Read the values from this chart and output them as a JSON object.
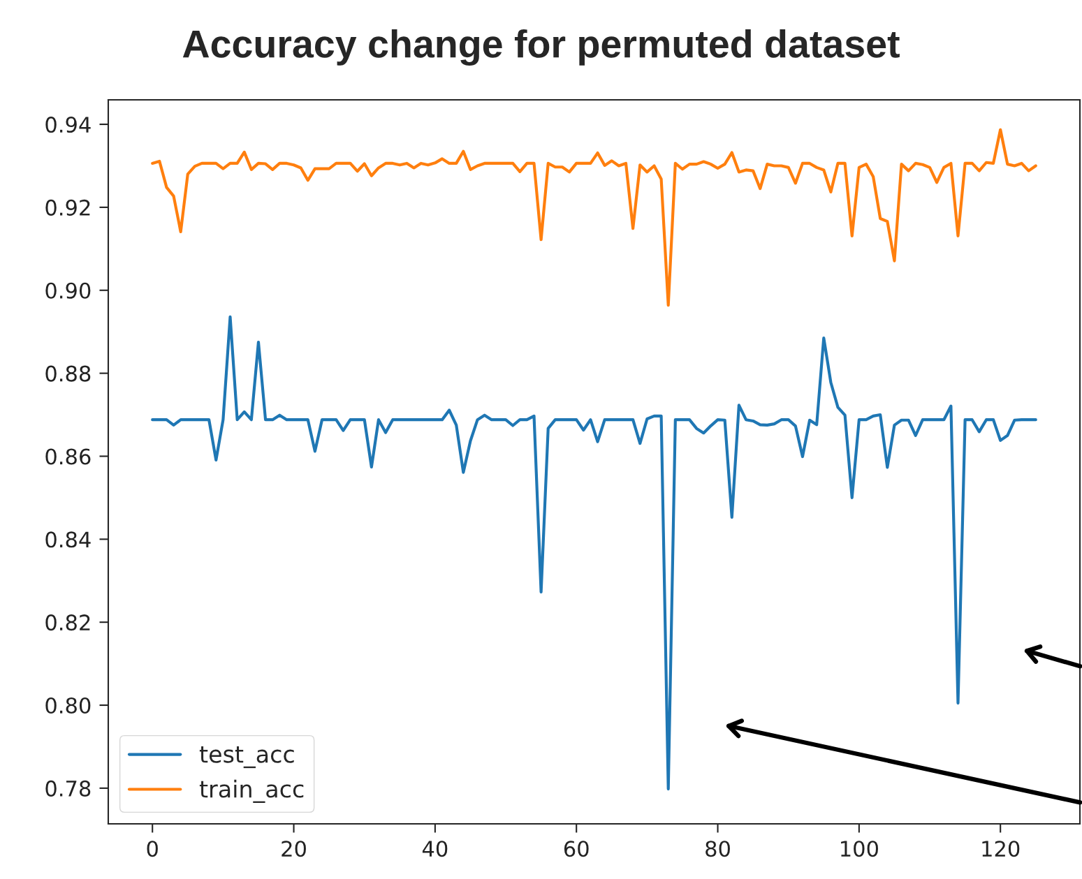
{
  "chart_data": {
    "type": "line",
    "title": "Accuracy change for permuted dataset",
    "x": [
      0,
      1,
      2,
      3,
      4,
      5,
      6,
      7,
      8,
      9,
      10,
      11,
      12,
      13,
      14,
      15,
      16,
      17,
      18,
      19,
      20,
      21,
      22,
      23,
      24,
      25,
      26,
      27,
      28,
      29,
      30,
      31,
      32,
      33,
      34,
      35,
      36,
      37,
      38,
      39,
      40,
      41,
      42,
      43,
      44,
      45,
      46,
      47,
      48,
      49,
      50,
      51,
      52,
      53,
      54,
      55,
      56,
      57,
      58,
      59,
      60,
      61,
      62,
      63,
      64,
      65,
      66,
      67,
      68,
      69,
      70,
      71,
      72,
      73,
      74,
      75,
      76,
      77,
      78,
      79,
      80,
      81,
      82,
      83,
      84,
      85,
      86,
      87,
      88,
      89,
      90,
      91,
      92,
      93,
      94,
      95,
      96,
      97,
      98,
      99,
      100,
      101,
      102,
      103,
      104,
      105,
      106,
      107,
      108,
      109,
      110,
      111,
      112,
      113,
      114,
      115,
      116,
      117,
      118,
      119,
      120,
      121,
      122,
      123,
      124,
      125
    ],
    "series": [
      {
        "name": "test_acc",
        "color": "#1f77b4",
        "values": [
          0.8688,
          0.8688,
          0.8688,
          0.8675,
          0.8688,
          0.8688,
          0.8688,
          0.8688,
          0.8688,
          0.8591,
          0.8688,
          0.8936,
          0.8688,
          0.8707,
          0.8688,
          0.8875,
          0.8688,
          0.8688,
          0.8699,
          0.8688,
          0.8688,
          0.8688,
          0.8688,
          0.8612,
          0.8688,
          0.8688,
          0.8688,
          0.8662,
          0.8688,
          0.8688,
          0.8688,
          0.8574,
          0.8688,
          0.8657,
          0.8688,
          0.8688,
          0.8688,
          0.8688,
          0.8688,
          0.8688,
          0.8688,
          0.8688,
          0.8711,
          0.8675,
          0.8561,
          0.8637,
          0.8688,
          0.8699,
          0.8688,
          0.8688,
          0.8688,
          0.8674,
          0.8688,
          0.8688,
          0.8697,
          0.8273,
          0.8667,
          0.8688,
          0.8688,
          0.8688,
          0.8688,
          0.8663,
          0.8688,
          0.8635,
          0.8688,
          0.8688,
          0.8688,
          0.8688,
          0.8688,
          0.8631,
          0.869,
          0.8697,
          0.8697,
          0.7798,
          0.8688,
          0.8688,
          0.8688,
          0.8667,
          0.8656,
          0.8673,
          0.8688,
          0.8687,
          0.8453,
          0.8723,
          0.8688,
          0.8685,
          0.8676,
          0.8675,
          0.8678,
          0.8688,
          0.8688,
          0.8673,
          0.8599,
          0.8687,
          0.8676,
          0.8885,
          0.8778,
          0.8718,
          0.8699,
          0.85,
          0.8688,
          0.8688,
          0.8697,
          0.87,
          0.8573,
          0.8675,
          0.8687,
          0.8687,
          0.865,
          0.8688,
          0.8688,
          0.8688,
          0.8688,
          0.8721,
          0.8005,
          0.8688,
          0.8688,
          0.8659,
          0.8688,
          0.8688,
          0.8638,
          0.865,
          0.8687,
          0.8688,
          0.8688,
          0.8688
        ]
      },
      {
        "name": "train_acc",
        "color": "#ff7f0e",
        "values": [
          0.9306,
          0.9311,
          0.9248,
          0.9227,
          0.9141,
          0.928,
          0.9299,
          0.9306,
          0.9306,
          0.9306,
          0.9293,
          0.9306,
          0.9306,
          0.9333,
          0.9291,
          0.9306,
          0.9305,
          0.9291,
          0.9306,
          0.9306,
          0.9302,
          0.9295,
          0.9265,
          0.9293,
          0.9293,
          0.9293,
          0.9306,
          0.9306,
          0.9306,
          0.9287,
          0.9305,
          0.9276,
          0.9295,
          0.9306,
          0.9306,
          0.9302,
          0.9306,
          0.9295,
          0.9306,
          0.9302,
          0.9307,
          0.9317,
          0.9306,
          0.9306,
          0.9335,
          0.9291,
          0.93,
          0.9306,
          0.9306,
          0.9306,
          0.9306,
          0.9306,
          0.9286,
          0.9306,
          0.9306,
          0.9122,
          0.9306,
          0.9297,
          0.9297,
          0.9285,
          0.9306,
          0.9306,
          0.9306,
          0.9331,
          0.9301,
          0.9312,
          0.93,
          0.9306,
          0.9149,
          0.9302,
          0.9285,
          0.93,
          0.9268,
          0.8964,
          0.9306,
          0.9292,
          0.9304,
          0.9304,
          0.931,
          0.9304,
          0.9294,
          0.9304,
          0.9332,
          0.9285,
          0.929,
          0.9288,
          0.9245,
          0.9304,
          0.93,
          0.93,
          0.9296,
          0.9258,
          0.9306,
          0.9306,
          0.9296,
          0.929,
          0.9237,
          0.9306,
          0.9306,
          0.9131,
          0.9296,
          0.9304,
          0.9274,
          0.9173,
          0.9166,
          0.9071,
          0.9304,
          0.9288,
          0.9306,
          0.9303,
          0.9296,
          0.926,
          0.9296,
          0.9306,
          0.9131,
          0.9306,
          0.9306,
          0.9288,
          0.9308,
          0.9306,
          0.9387,
          0.9304,
          0.93,
          0.9306,
          0.9288,
          0.93
        ]
      }
    ],
    "xlim": [
      -6.25,
      131.25
    ],
    "ylim": [
      0.7714,
      0.9459
    ],
    "xticks": [
      0,
      20,
      40,
      60,
      80,
      100,
      120
    ],
    "yticks": [
      0.78,
      {
        "value": 0.8,
        "label": "0.80"
      },
      0.82,
      0.84,
      0.86,
      0.88,
      {
        "value": 0.9,
        "label": "0.90"
      },
      0.92,
      0.94
    ],
    "legend": "bottom left",
    "grid": false,
    "line_style": "solid",
    "marker": "none"
  }
}
